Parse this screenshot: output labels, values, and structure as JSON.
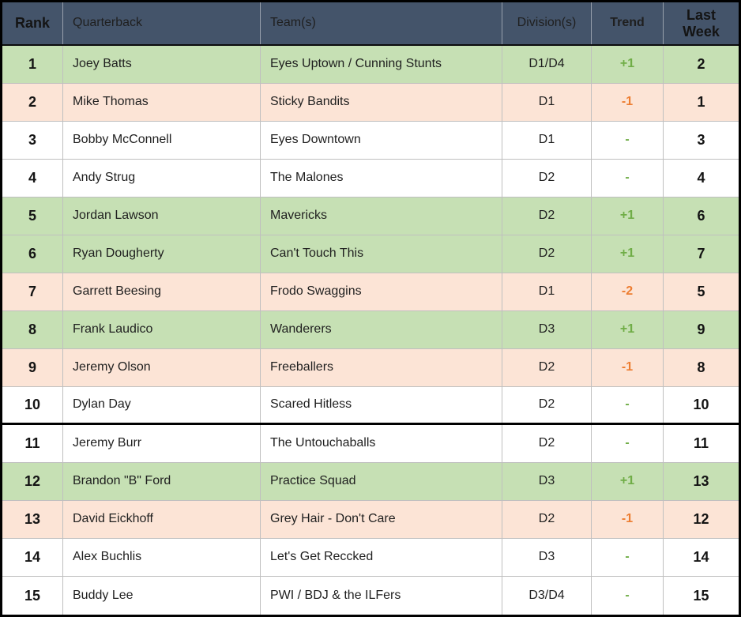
{
  "columns": [
    "Rank",
    "Quarterback",
    "Team(s)",
    "Division(s)",
    "Trend",
    "Last Week"
  ],
  "rows": [
    {
      "rank": "1",
      "quarterback": "Joey Batts",
      "teams": "Eyes Uptown / Cunning Stunts",
      "divisions": "D1/D4",
      "trend": "+1",
      "last_week": "2",
      "highlight": "up",
      "divider_below": false
    },
    {
      "rank": "2",
      "quarterback": "Mike Thomas",
      "teams": "Sticky Bandits",
      "divisions": "D1",
      "trend": "-1",
      "last_week": "1",
      "highlight": "down",
      "divider_below": false
    },
    {
      "rank": "3",
      "quarterback": "Bobby McConnell",
      "teams": "Eyes Downtown",
      "divisions": "D1",
      "trend": "-",
      "last_week": "3",
      "highlight": "none",
      "divider_below": false
    },
    {
      "rank": "4",
      "quarterback": "Andy Strug",
      "teams": "The Malones",
      "divisions": "D2",
      "trend": "-",
      "last_week": "4",
      "highlight": "none",
      "divider_below": false
    },
    {
      "rank": "5",
      "quarterback": "Jordan Lawson",
      "teams": "Mavericks",
      "divisions": "D2",
      "trend": "+1",
      "last_week": "6",
      "highlight": "up",
      "divider_below": false
    },
    {
      "rank": "6",
      "quarterback": "Ryan Dougherty",
      "teams": "Can't Touch This",
      "divisions": "D2",
      "trend": "+1",
      "last_week": "7",
      "highlight": "up",
      "divider_below": false
    },
    {
      "rank": "7",
      "quarterback": "Garrett Beesing",
      "teams": "Frodo Swaggins",
      "divisions": "D1",
      "trend": "-2",
      "last_week": "5",
      "highlight": "down",
      "divider_below": false
    },
    {
      "rank": "8",
      "quarterback": "Frank Laudico",
      "teams": "Wanderers",
      "divisions": "D3",
      "trend": "+1",
      "last_week": "9",
      "highlight": "up",
      "divider_below": false
    },
    {
      "rank": "9",
      "quarterback": "Jeremy Olson",
      "teams": "Freeballers",
      "divisions": "D2",
      "trend": "-1",
      "last_week": "8",
      "highlight": "down",
      "divider_below": false
    },
    {
      "rank": "10",
      "quarterback": "Dylan Day",
      "teams": "Scared Hitless",
      "divisions": "D2",
      "trend": "-",
      "last_week": "10",
      "highlight": "none",
      "divider_below": true
    },
    {
      "rank": "11",
      "quarterback": "Jeremy Burr",
      "teams": "The Untouchaballs",
      "divisions": "D2",
      "trend": "-",
      "last_week": "11",
      "highlight": "none",
      "divider_below": false
    },
    {
      "rank": "12",
      "quarterback": "Brandon \"B\" Ford",
      "teams": "Practice Squad",
      "divisions": "D3",
      "trend": "+1",
      "last_week": "13",
      "highlight": "up",
      "divider_below": false
    },
    {
      "rank": "13",
      "quarterback": "David Eickhoff",
      "teams": "Grey Hair - Don't Care",
      "divisions": "D2",
      "trend": "-1",
      "last_week": "12",
      "highlight": "down",
      "divider_below": false
    },
    {
      "rank": "14",
      "quarterback": "Alex Buchlis",
      "teams": "Let's Get Reccked",
      "divisions": "D3",
      "trend": "-",
      "last_week": "14",
      "highlight": "none",
      "divider_below": false
    },
    {
      "rank": "15",
      "quarterback": "Buddy Lee",
      "teams": "PWI / BDJ & the ILFers",
      "divisions": "D3/D4",
      "trend": "-",
      "last_week": "15",
      "highlight": "none",
      "divider_below": false
    }
  ],
  "colors": {
    "header_bg": "#44546a",
    "header_text": "#ffffff",
    "row_up_bg": "#c6e0b4",
    "row_down_bg": "#fce4d6",
    "row_none_bg": "#ffffff",
    "trend_up": "#70ad47",
    "trend_down": "#ed7d31",
    "grid_line": "#bfbfbf"
  }
}
